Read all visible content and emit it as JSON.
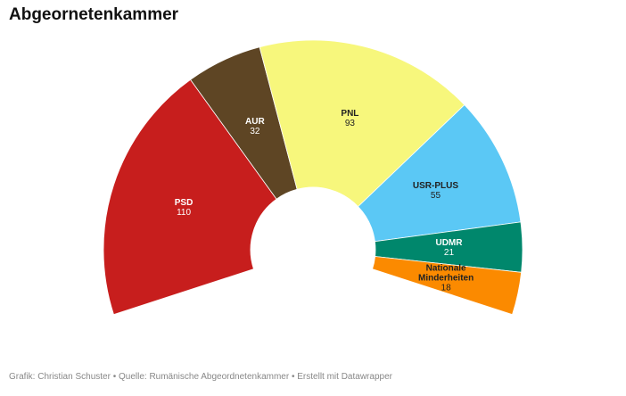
{
  "chart_data": {
    "type": "semicircle-donut",
    "title": "Abgeornetenkammer",
    "categories": [
      "PSD",
      "AUR",
      "PNL",
      "USR-PLUS",
      "UDMR",
      "Nationale Minderheiten"
    ],
    "values": [
      110,
      32,
      93,
      55,
      21,
      18
    ],
    "colors": [
      "#c71e1d",
      "#5e4524",
      "#f7f77c",
      "#5bc8f5",
      "#00876c",
      "#fb8a00"
    ],
    "caption": "Grafik: Christian Schuster • Quelle: Rumänische Abgeordnetenkammer • Erstellt mit Datawrapper"
  }
}
